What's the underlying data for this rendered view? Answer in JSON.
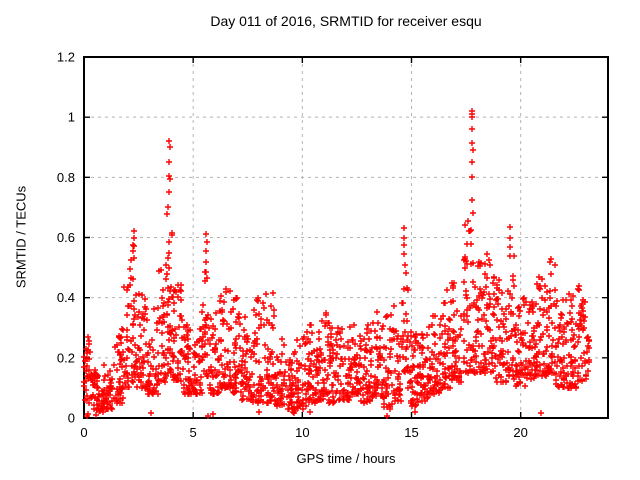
{
  "chart_data": {
    "type": "scatter",
    "title": "Day 011 of 2016, SRMTID for receiver esqu",
    "xlabel": "GPS time / hours",
    "ylabel": "SRMTID / TECUs",
    "xlim": [
      0,
      24
    ],
    "ylim": [
      0,
      1.2
    ],
    "xticks": [
      0,
      5,
      10,
      15,
      20
    ],
    "xtick_labels": [
      "0",
      "5",
      "10",
      "15",
      "20"
    ],
    "yticks": [
      0,
      0.2,
      0.4,
      0.6,
      0.8,
      1,
      1.2
    ],
    "ytick_labels": [
      "0",
      "0.2",
      "0.4",
      "0.6",
      "0.8",
      "1",
      "1.2"
    ],
    "grid": true,
    "legend": "none",
    "marker": "plus",
    "colors": {
      "points": "#ff0000",
      "grid": "#b4b4b4",
      "axis": "#000000",
      "background": "#ffffff",
      "text": "#000000"
    },
    "seed": 20160111,
    "bands_columns": [
      "x_start",
      "x_end",
      "n_points",
      "y_min",
      "y_max",
      "skew_exponent"
    ],
    "bands": [
      [
        0.0,
        0.3,
        26,
        0.05,
        0.28,
        1.1
      ],
      [
        0.3,
        0.8,
        42,
        0.02,
        0.16,
        1.5
      ],
      [
        0.8,
        1.3,
        46,
        0.03,
        0.18,
        1.5
      ],
      [
        1.3,
        1.8,
        40,
        0.05,
        0.3,
        1.8
      ],
      [
        1.8,
        2.1,
        28,
        0.1,
        0.46,
        1.7
      ],
      [
        2.1,
        2.4,
        32,
        0.12,
        0.58,
        2.0
      ],
      [
        2.4,
        2.9,
        46,
        0.1,
        0.46,
        2.0
      ],
      [
        2.9,
        3.4,
        42,
        0.08,
        0.38,
        1.8
      ],
      [
        3.4,
        3.75,
        30,
        0.12,
        0.52,
        1.8
      ],
      [
        3.75,
        4.05,
        38,
        0.15,
        0.68,
        1.5
      ],
      [
        4.05,
        4.5,
        42,
        0.12,
        0.46,
        1.9
      ],
      [
        4.5,
        5.0,
        46,
        0.08,
        0.33,
        1.7
      ],
      [
        5.0,
        5.4,
        36,
        0.08,
        0.3,
        1.6
      ],
      [
        5.4,
        5.75,
        30,
        0.14,
        0.5,
        1.4
      ],
      [
        5.75,
        6.2,
        40,
        0.08,
        0.36,
        1.7
      ],
      [
        6.2,
        6.7,
        46,
        0.1,
        0.44,
        1.9
      ],
      [
        6.7,
        7.2,
        46,
        0.08,
        0.4,
        1.9
      ],
      [
        7.2,
        7.7,
        46,
        0.06,
        0.34,
        1.7
      ],
      [
        7.7,
        8.2,
        44,
        0.05,
        0.4,
        2.0
      ],
      [
        8.2,
        8.7,
        44,
        0.05,
        0.42,
        2.2
      ],
      [
        8.7,
        9.2,
        44,
        0.04,
        0.27,
        1.6
      ],
      [
        9.2,
        9.7,
        40,
        0.02,
        0.26,
        1.7
      ],
      [
        9.7,
        10.2,
        40,
        0.03,
        0.28,
        1.7
      ],
      [
        10.2,
        10.7,
        44,
        0.05,
        0.31,
        1.7
      ],
      [
        10.7,
        11.2,
        46,
        0.06,
        0.35,
        1.8
      ],
      [
        11.2,
        11.7,
        44,
        0.05,
        0.33,
        1.7
      ],
      [
        11.7,
        12.2,
        44,
        0.06,
        0.31,
        1.6
      ],
      [
        12.2,
        12.7,
        44,
        0.08,
        0.33,
        1.7
      ],
      [
        12.7,
        13.2,
        44,
        0.05,
        0.31,
        1.6
      ],
      [
        13.2,
        13.7,
        46,
        0.07,
        0.36,
        1.8
      ],
      [
        13.7,
        14.2,
        40,
        0.03,
        0.38,
        2.0
      ],
      [
        14.2,
        14.55,
        28,
        0.05,
        0.3,
        1.6
      ],
      [
        14.55,
        14.85,
        26,
        0.15,
        0.52,
        1.3
      ],
      [
        14.85,
        15.3,
        40,
        0.04,
        0.3,
        1.6
      ],
      [
        15.3,
        15.8,
        44,
        0.05,
        0.28,
        1.6
      ],
      [
        15.8,
        16.3,
        44,
        0.08,
        0.34,
        1.7
      ],
      [
        16.3,
        16.8,
        46,
        0.1,
        0.43,
        1.8
      ],
      [
        16.8,
        17.3,
        46,
        0.12,
        0.46,
        1.8
      ],
      [
        17.3,
        17.85,
        46,
        0.15,
        0.66,
        1.5
      ],
      [
        17.85,
        18.35,
        46,
        0.15,
        0.55,
        1.8
      ],
      [
        18.35,
        18.85,
        46,
        0.15,
        0.55,
        1.9
      ],
      [
        18.85,
        19.35,
        44,
        0.12,
        0.46,
        1.8
      ],
      [
        19.35,
        19.7,
        30,
        0.14,
        0.55,
        1.9
      ],
      [
        19.7,
        20.2,
        44,
        0.1,
        0.4,
        1.7
      ],
      [
        20.2,
        20.7,
        44,
        0.13,
        0.4,
        1.6
      ],
      [
        20.7,
        21.2,
        44,
        0.14,
        0.48,
        1.8
      ],
      [
        21.2,
        21.6,
        34,
        0.15,
        0.53,
        1.9
      ],
      [
        21.6,
        22.1,
        44,
        0.1,
        0.4,
        1.6
      ],
      [
        22.1,
        22.6,
        44,
        0.1,
        0.44,
        1.7
      ],
      [
        22.6,
        23.0,
        38,
        0.12,
        0.44,
        1.5
      ],
      [
        23.0,
        23.15,
        12,
        0.14,
        0.34,
        1.2
      ]
    ],
    "peak_points": [
      [
        2.28,
        0.62
      ],
      [
        2.31,
        0.6
      ],
      [
        2.26,
        0.575
      ],
      [
        3.9,
        0.92
      ],
      [
        3.92,
        0.9
      ],
      [
        3.91,
        0.85
      ],
      [
        3.88,
        0.805
      ],
      [
        3.93,
        0.795
      ],
      [
        3.9,
        0.75
      ],
      [
        3.87,
        0.7
      ],
      [
        5.6,
        0.61
      ],
      [
        5.62,
        0.585
      ],
      [
        5.58,
        0.555
      ],
      [
        5.61,
        0.52
      ],
      [
        14.65,
        0.63
      ],
      [
        14.67,
        0.6
      ],
      [
        14.64,
        0.575
      ],
      [
        14.66,
        0.545
      ],
      [
        14.68,
        0.51
      ],
      [
        17.76,
        1.02
      ],
      [
        17.79,
        1.01
      ],
      [
        17.77,
        1.0
      ],
      [
        17.78,
        0.96
      ],
      [
        17.76,
        0.915
      ],
      [
        17.8,
        0.89
      ],
      [
        17.77,
        0.85
      ],
      [
        17.79,
        0.8
      ],
      [
        17.75,
        0.725
      ],
      [
        17.81,
        0.68
      ],
      [
        19.5,
        0.635
      ],
      [
        19.52,
        0.6
      ],
      [
        19.49,
        0.57
      ],
      [
        19.53,
        0.54
      ],
      [
        21.38,
        0.53
      ],
      [
        22.65,
        0.44
      ]
    ],
    "near_zero_points": [
      [
        0.12,
        0.005
      ],
      [
        0.2,
        0.012
      ],
      [
        0.55,
        0.01
      ],
      [
        0.85,
        0.02
      ],
      [
        3.05,
        0.015
      ],
      [
        5.7,
        0.005
      ],
      [
        5.92,
        0.012
      ],
      [
        8.02,
        0.02
      ],
      [
        9.62,
        0.015
      ],
      [
        10.35,
        0.02
      ],
      [
        13.88,
        0.008
      ],
      [
        15.18,
        0.02
      ],
      [
        20.92,
        0.015
      ]
    ]
  }
}
